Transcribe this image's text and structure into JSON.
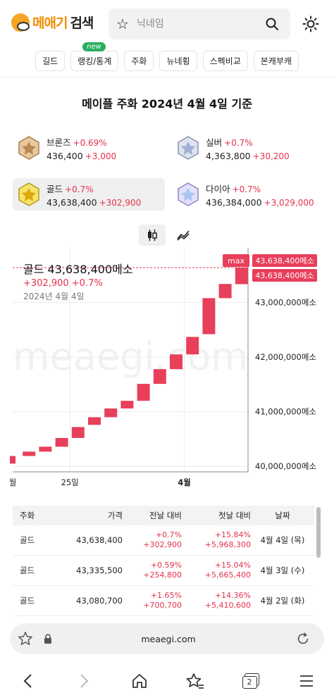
{
  "header": {
    "logo_main": "메애기",
    "logo_sub": "검색",
    "search_placeholder": "닉네임"
  },
  "nav": [
    {
      "label": "길드",
      "badge": ""
    },
    {
      "label": "랭킹/통계",
      "badge": "new"
    },
    {
      "label": "주화",
      "badge": ""
    },
    {
      "label": "뉴네횡",
      "badge": ""
    },
    {
      "label": "스펙비교",
      "badge": ""
    },
    {
      "label": "본캐부캐",
      "badge": ""
    }
  ],
  "page_title": "메이플 주화 2024년 4월 4일 기준",
  "currencies": [
    {
      "name": "브론즈",
      "change_pct": "+0.69%",
      "price": "436,400",
      "change_abs": "+3,000",
      "color": "#c8a064"
    },
    {
      "name": "실버",
      "change_pct": "+0.7%",
      "price": "4,363,800",
      "change_abs": "+30,200",
      "color": "#b9c3d6"
    },
    {
      "name": "골드",
      "change_pct": "+0.7%",
      "price": "43,638,400",
      "change_abs": "+302,900",
      "color": "#f2d338"
    },
    {
      "name": "다이아",
      "change_pct": "+0.7%",
      "price": "436,384,000",
      "change_abs": "+3,029,000",
      "color": "#c7c0ee"
    }
  ],
  "chart_info": {
    "line1": "골드 43,638,400메소",
    "line2": "+302,900 +0.7%",
    "line3": "2024년 4월 4일"
  },
  "chart_data": {
    "type": "candlestick",
    "series_name": "골드",
    "unit": "메소",
    "y_ticks": [
      "43,000,000메소",
      "42,000,000메소",
      "41,000,000메소",
      "40,000,000메소"
    ],
    "y_tick_values": [
      43000000,
      42000000,
      41000000,
      40000000
    ],
    "x_ticks": [
      "월",
      "25일",
      "4월"
    ],
    "x_tick_index": [
      0,
      3.5,
      10.5
    ],
    "max_label": "max",
    "max_value_label": "43,638,400메소",
    "last_value_label": "43,638,400메소",
    "candles": [
      {
        "open": 40050000,
        "close": 40190000
      },
      {
        "open": 40190000,
        "close": 40270000
      },
      {
        "open": 40270000,
        "close": 40360000
      },
      {
        "open": 40360000,
        "close": 40520000
      },
      {
        "open": 40520000,
        "close": 40720000
      },
      {
        "open": 40760000,
        "close": 40900000
      },
      {
        "open": 40900000,
        "close": 41060000
      },
      {
        "open": 41060000,
        "close": 41200000
      },
      {
        "open": 41200000,
        "close": 41510000
      },
      {
        "open": 41510000,
        "close": 41780000
      },
      {
        "open": 41780000,
        "close": 42050000
      },
      {
        "open": 42050000,
        "close": 42370000
      },
      {
        "open": 42420000,
        "close": 43080000
      },
      {
        "open": 43080000,
        "close": 43340000
      },
      {
        "open": 43335500,
        "close": 43638400
      }
    ],
    "ylim": [
      39900000,
      44000000
    ],
    "accent_color": "#e83f5b"
  },
  "table": {
    "headers": [
      "주화",
      "가격",
      "전날 대비",
      "첫날 대비",
      "날짜"
    ],
    "rows": [
      {
        "coin": "골드",
        "price": "43,638,400",
        "prev_pct": "+0.7%",
        "prev_abs": "+302,900",
        "first_pct": "+15.84%",
        "first_abs": "+5,968,300",
        "date": "4월 4일 (목)"
      },
      {
        "coin": "골드",
        "price": "43,335,500",
        "prev_pct": "+0.59%",
        "prev_abs": "+254,800",
        "first_pct": "+15.04%",
        "first_abs": "+5,665,400",
        "date": "4월 3일 (수)"
      },
      {
        "coin": "골드",
        "price": "43,080,700",
        "prev_pct": "+1.65%",
        "prev_abs": "+700,700",
        "first_pct": "+14.36%",
        "first_abs": "+5,410,600",
        "date": "4월 2일 (화)"
      }
    ]
  },
  "browser": {
    "url": "meaegi.com",
    "tab_count": "2"
  },
  "watermark": "meaegi.com"
}
